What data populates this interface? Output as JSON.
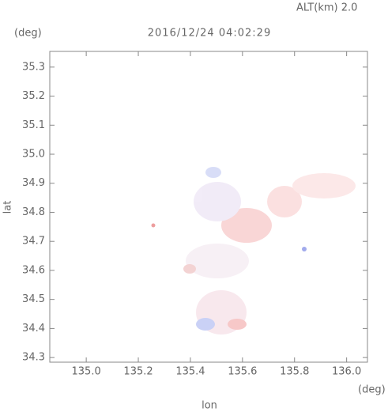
{
  "chart_data": {
    "type": "map",
    "title": "2016/12/24 04:02:29",
    "subtitle": "ALT(km) 2.0",
    "x_label": "lon",
    "y_label": "lat",
    "x_unit": "(deg)",
    "y_unit": "(deg)",
    "xlim": [
      134.86,
      136.08
    ],
    "ylim": [
      34.284,
      35.354
    ],
    "xticks": [
      {
        "value": 135,
        "label": "135.0"
      },
      135.2,
      135.4,
      135.6,
      135.8,
      {
        "value": 136,
        "label": "136.0"
      }
    ],
    "yticks": [
      34.3,
      34.4,
      34.5,
      34.6,
      34.7,
      34.8,
      34.9,
      {
        "value": 35,
        "label": "35.0"
      },
      35.1,
      35.2,
      35.3
    ]
  }
}
